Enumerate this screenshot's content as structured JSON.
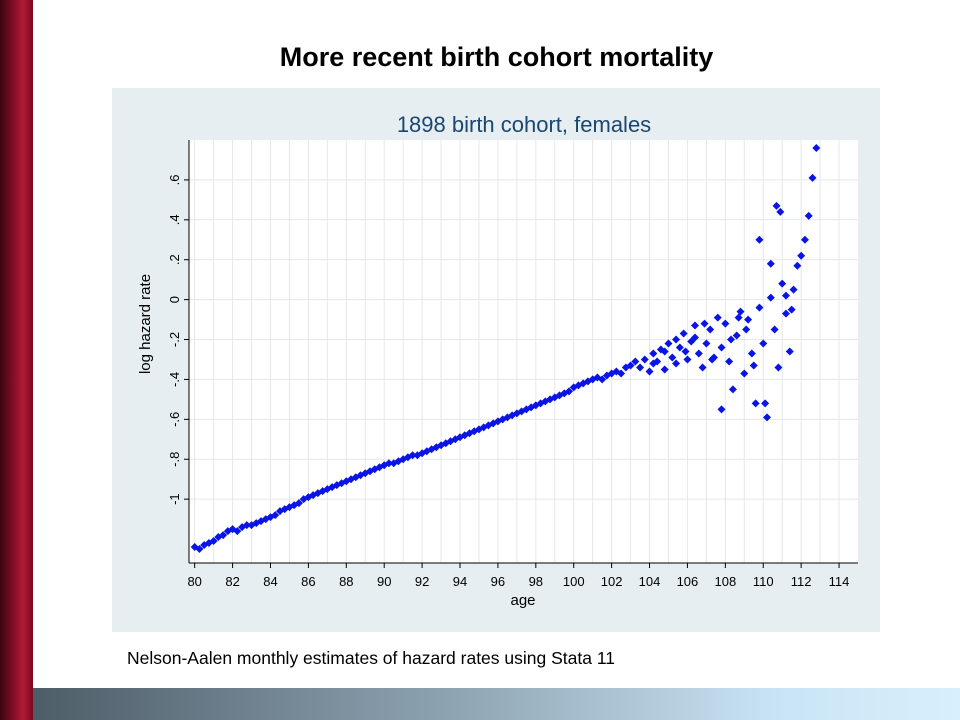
{
  "slide": {
    "title": "More recent birth cohort mortality",
    "caption": "Nelson-Aalen monthly estimates of hazard rates using Stata 11"
  },
  "theme": {
    "left_bar_color": "#8a1028",
    "bottom_bar_color": "#8ea3b2",
    "marker_color": "#0a14e6",
    "panel_background": "#e6eef2",
    "plot_background": "#ffffff"
  },
  "chart_data": {
    "type": "scatter",
    "title": "1898 birth cohort, females",
    "xlabel": "age",
    "ylabel": "log hazard rate",
    "xlim": [
      79.7,
      115
    ],
    "ylim": [
      -1.32,
      0.8
    ],
    "x_ticks": [
      80,
      82,
      84,
      86,
      88,
      90,
      92,
      94,
      96,
      98,
      100,
      102,
      104,
      106,
      108,
      110,
      112,
      114
    ],
    "x_tick_labels": [
      "80",
      "82",
      "84",
      "86",
      "88",
      "90",
      "92",
      "94",
      "96",
      "98",
      "100",
      "102",
      "104",
      "106",
      "108",
      "110",
      "112",
      "114"
    ],
    "y_ticks": [
      -1,
      -0.8,
      -0.6,
      -0.4,
      -0.2,
      0,
      0.2,
      0.4,
      0.6
    ],
    "y_tick_labels": [
      "-1",
      "-.8",
      "-.6",
      "-.4",
      "-.2",
      "0",
      ".2",
      ".4",
      ".6"
    ],
    "grid": true,
    "marker": "diamond",
    "series": [
      {
        "points": [
          [
            80.0,
            -1.24
          ],
          [
            80.25,
            -1.25
          ],
          [
            80.5,
            -1.23
          ],
          [
            80.75,
            -1.22
          ],
          [
            81.0,
            -1.21
          ],
          [
            81.25,
            -1.19
          ],
          [
            81.5,
            -1.18
          ],
          [
            81.75,
            -1.16
          ],
          [
            82.0,
            -1.15
          ],
          [
            82.25,
            -1.16
          ],
          [
            82.5,
            -1.14
          ],
          [
            82.75,
            -1.13
          ],
          [
            83.0,
            -1.13
          ],
          [
            83.25,
            -1.12
          ],
          [
            83.5,
            -1.11
          ],
          [
            83.75,
            -1.1
          ],
          [
            84.0,
            -1.09
          ],
          [
            84.25,
            -1.08
          ],
          [
            84.5,
            -1.06
          ],
          [
            84.75,
            -1.05
          ],
          [
            85.0,
            -1.04
          ],
          [
            85.25,
            -1.03
          ],
          [
            85.5,
            -1.02
          ],
          [
            85.75,
            -1.0
          ],
          [
            86.0,
            -0.99
          ],
          [
            86.25,
            -0.98
          ],
          [
            86.5,
            -0.97
          ],
          [
            86.75,
            -0.96
          ],
          [
            87.0,
            -0.95
          ],
          [
            87.25,
            -0.94
          ],
          [
            87.5,
            -0.93
          ],
          [
            87.75,
            -0.92
          ],
          [
            88.0,
            -0.91
          ],
          [
            88.25,
            -0.9
          ],
          [
            88.5,
            -0.89
          ],
          [
            88.75,
            -0.88
          ],
          [
            89.0,
            -0.87
          ],
          [
            89.25,
            -0.86
          ],
          [
            89.5,
            -0.85
          ],
          [
            89.75,
            -0.84
          ],
          [
            90.0,
            -0.83
          ],
          [
            90.25,
            -0.82
          ],
          [
            90.5,
            -0.82
          ],
          [
            90.75,
            -0.81
          ],
          [
            91.0,
            -0.8
          ],
          [
            91.25,
            -0.79
          ],
          [
            91.5,
            -0.78
          ],
          [
            91.75,
            -0.78
          ],
          [
            92.0,
            -0.77
          ],
          [
            92.25,
            -0.76
          ],
          [
            92.5,
            -0.75
          ],
          [
            92.75,
            -0.74
          ],
          [
            93.0,
            -0.73
          ],
          [
            93.25,
            -0.72
          ],
          [
            93.5,
            -0.71
          ],
          [
            93.75,
            -0.7
          ],
          [
            94.0,
            -0.69
          ],
          [
            94.25,
            -0.68
          ],
          [
            94.5,
            -0.67
          ],
          [
            94.75,
            -0.66
          ],
          [
            95.0,
            -0.65
          ],
          [
            95.25,
            -0.64
          ],
          [
            95.5,
            -0.63
          ],
          [
            95.75,
            -0.62
          ],
          [
            96.0,
            -0.61
          ],
          [
            96.25,
            -0.6
          ],
          [
            96.5,
            -0.59
          ],
          [
            96.75,
            -0.58
          ],
          [
            97.0,
            -0.57
          ],
          [
            97.25,
            -0.56
          ],
          [
            97.5,
            -0.55
          ],
          [
            97.75,
            -0.54
          ],
          [
            98.0,
            -0.53
          ],
          [
            98.25,
            -0.52
          ],
          [
            98.5,
            -0.51
          ],
          [
            98.75,
            -0.5
          ],
          [
            99.0,
            -0.49
          ],
          [
            99.25,
            -0.48
          ],
          [
            99.5,
            -0.47
          ],
          [
            99.75,
            -0.46
          ],
          [
            100.0,
            -0.44
          ],
          [
            100.25,
            -0.43
          ],
          [
            100.5,
            -0.42
          ],
          [
            100.75,
            -0.41
          ],
          [
            101.0,
            -0.4
          ],
          [
            101.25,
            -0.39
          ],
          [
            101.5,
            -0.4
          ],
          [
            101.75,
            -0.38
          ],
          [
            102.0,
            -0.37
          ],
          [
            102.25,
            -0.36
          ],
          [
            102.5,
            -0.37
          ],
          [
            102.75,
            -0.34
          ],
          [
            103.0,
            -0.33
          ],
          [
            103.25,
            -0.31
          ],
          [
            103.5,
            -0.34
          ],
          [
            103.75,
            -0.3
          ],
          [
            104.0,
            -0.36
          ],
          [
            104.2,
            -0.27
          ],
          [
            104.4,
            -0.31
          ],
          [
            104.6,
            -0.25
          ],
          [
            104.8,
            -0.35
          ],
          [
            105.0,
            -0.22
          ],
          [
            105.2,
            -0.29
          ],
          [
            105.4,
            -0.32
          ],
          [
            105.6,
            -0.24
          ],
          [
            105.8,
            -0.17
          ],
          [
            106.0,
            -0.3
          ],
          [
            106.2,
            -0.21
          ],
          [
            106.4,
            -0.13
          ],
          [
            106.6,
            -0.27
          ],
          [
            106.8,
            -0.34
          ],
          [
            107.0,
            -0.22
          ],
          [
            107.2,
            -0.15
          ],
          [
            107.4,
            -0.29
          ],
          [
            107.6,
            -0.09
          ],
          [
            107.8,
            -0.24
          ],
          [
            108.0,
            -0.12
          ],
          [
            108.2,
            -0.31
          ],
          [
            108.4,
            -0.45
          ],
          [
            108.6,
            -0.18
          ],
          [
            108.8,
            -0.06
          ],
          [
            109.0,
            -0.37
          ],
          [
            109.2,
            -0.1
          ],
          [
            109.4,
            -0.27
          ],
          [
            109.6,
            -0.52
          ],
          [
            109.8,
            -0.04
          ],
          [
            110.0,
            -0.22
          ],
          [
            110.2,
            -0.59
          ],
          [
            110.4,
            0.01
          ],
          [
            110.6,
            -0.15
          ],
          [
            110.8,
            -0.34
          ],
          [
            111.0,
            0.08
          ],
          [
            111.2,
            -0.07
          ],
          [
            111.4,
            -0.26
          ],
          [
            111.6,
            0.05
          ],
          [
            111.8,
            0.17
          ],
          [
            112.0,
            0.22
          ],
          [
            112.2,
            0.3
          ],
          [
            112.4,
            0.42
          ],
          [
            112.6,
            0.61
          ],
          [
            112.8,
            0.76
          ],
          [
            104.2,
            -0.32
          ],
          [
            104.8,
            -0.26
          ],
          [
            105.4,
            -0.2
          ],
          [
            105.9,
            -0.26
          ],
          [
            106.4,
            -0.19
          ],
          [
            106.9,
            -0.12
          ],
          [
            107.3,
            -0.3
          ],
          [
            107.8,
            -0.55
          ],
          [
            108.3,
            -0.2
          ],
          [
            108.7,
            -0.09
          ],
          [
            109.1,
            -0.15
          ],
          [
            109.5,
            -0.33
          ],
          [
            109.8,
            0.3
          ],
          [
            110.1,
            -0.52
          ],
          [
            110.4,
            0.18
          ],
          [
            110.7,
            0.47
          ],
          [
            110.9,
            0.44
          ],
          [
            111.2,
            0.02
          ],
          [
            111.5,
            -0.05
          ]
        ]
      }
    ]
  }
}
